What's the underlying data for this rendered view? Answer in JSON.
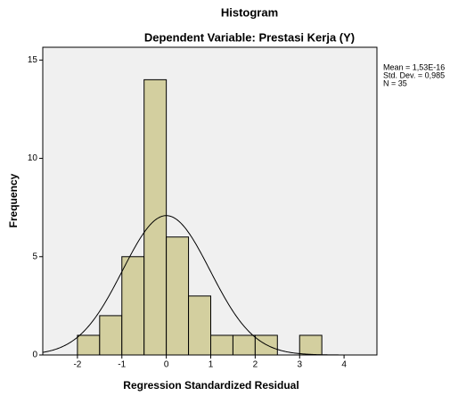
{
  "chart_data": {
    "type": "histogram",
    "title": "Histogram",
    "subtitle": "Dependent Variable: Prestasi Kerja (Y)",
    "x_label": "Regression Standardized Residual",
    "y_label": "Frequency",
    "bins": [
      -2,
      -1.5,
      -1,
      -0.5,
      0,
      0.5,
      1,
      1.5,
      2,
      2.5,
      3,
      3.5
    ],
    "counts": [
      1,
      2,
      5,
      14,
      6,
      3,
      1,
      1,
      1,
      0,
      1
    ],
    "color": "#d3cf9f",
    "xlim": [
      -2.78,
      4.74
    ],
    "xticks": [
      -2,
      -1,
      0,
      1,
      2,
      3,
      4
    ],
    "ylim": [
      0,
      15.65
    ],
    "yticks": [
      0,
      5,
      10,
      15
    ],
    "stats": {
      "mean": {
        "value": 1.53e-16,
        "label": "Mean = 1,53E-16"
      },
      "std_dev": {
        "value": 0.985,
        "label": "Std. Dev. = 0,985"
      },
      "n": {
        "value": 35,
        "label": "N = 35"
      }
    },
    "normal_curve": true
  }
}
